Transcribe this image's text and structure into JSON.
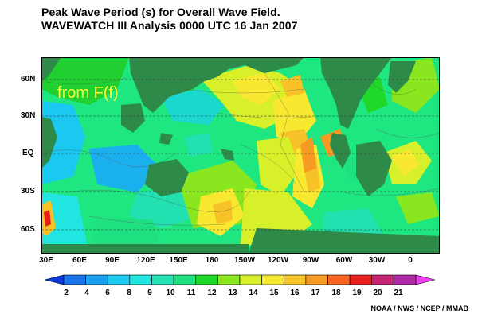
{
  "title": {
    "line1": "Peak Wave Period (s) for Overall Wave Field.",
    "line2": "WAVEWATCH III Analysis 0000 UTC 16 Jan 2007"
  },
  "map_label": "from F(f)",
  "lat_labels": [
    "60N",
    "30N",
    "EQ",
    "30S",
    "60S"
  ],
  "lon_labels": [
    "30E",
    "60E",
    "90E",
    "120E",
    "150E",
    "180",
    "150W",
    "120W",
    "90W",
    "60W",
    "30W",
    "0"
  ],
  "colorbar": {
    "labels": [
      "2",
      "4",
      "6",
      "8",
      "9",
      "10",
      "11",
      "12",
      "13",
      "14",
      "15",
      "16",
      "17",
      "18",
      "19",
      "20",
      "21"
    ],
    "colors": [
      "#0a3ad8",
      "#1a73e8",
      "#1aa0ee",
      "#1ac8f0",
      "#22e4e0",
      "#22e0b0",
      "#1ee080",
      "#20d828",
      "#8ae61e",
      "#d8f02a",
      "#f8e830",
      "#f6c228",
      "#f79a24",
      "#f46420",
      "#e8201c",
      "#c42470",
      "#b02aa8",
      "#f23ef4"
    ]
  },
  "credit": "NOAA / NWS / NCEP / MMAB"
}
